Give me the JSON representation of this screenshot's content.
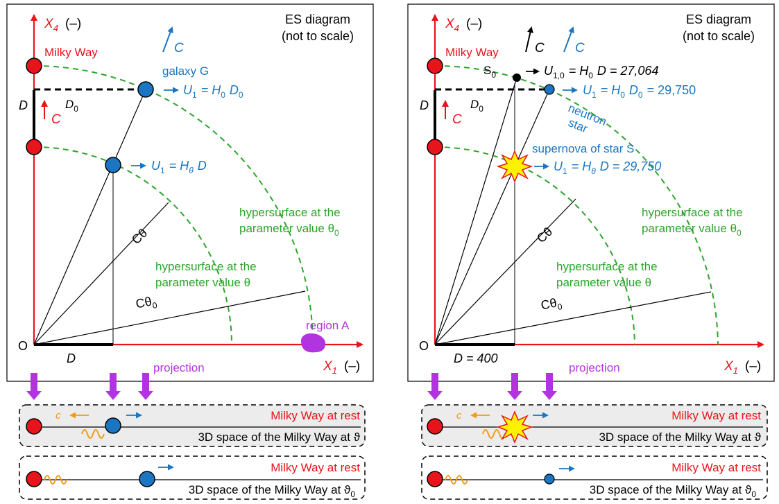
{
  "colors": {
    "red": "#e8141c",
    "blue": "#1a76c2",
    "green": "#2aa52a",
    "magenta": "#b233e0",
    "orange": "#f29a1a",
    "panel_gray": "#ececec"
  },
  "left": {
    "title_line1": "ES diagram",
    "title_line2": "(not to scale)",
    "axis_x4": "X",
    "axis_x4_sub": "4",
    "axis_unit": "(–)",
    "axis_x1": "X",
    "axis_x1_sub": "1",
    "milky_way": "Milky Way",
    "c_label": "C",
    "galaxy": "galaxy G",
    "d_label": "D",
    "d0_label": "D",
    "d0_sub": "0",
    "u1_top_main": "U",
    "u1_top_sub": "1",
    "u1_top_eq": "= H",
    "u1_top_h_sub": "0",
    "u1_top_d": "D",
    "u1_top_d_sub": "0",
    "u1_mid_main": "U",
    "u1_mid_sub": "1",
    "u1_mid_eq": "= H",
    "u1_mid_h_sub": "θ",
    "u1_mid_d": "D",
    "c_theta": "Cθ",
    "c_theta0": "Cθ",
    "c_theta0_sub": "0",
    "hyper_outer_1": "hypersurface at the",
    "hyper_outer_2": "parameter value θ",
    "hyper_outer_2_sub": "0",
    "hyper_inner_1": "hypersurface at the",
    "hyper_inner_2": "parameter value θ",
    "origin": "O",
    "region": "region A",
    "projection": "projection"
  },
  "right": {
    "title_line1": "ES diagram",
    "title_line2": "(not to scale)",
    "axis_x4": "X",
    "axis_x4_sub": "4",
    "axis_unit": "(–)",
    "axis_x1": "X",
    "axis_x1_sub": "1",
    "milky_way": "Milky Way",
    "c_label": "C",
    "s0": "S",
    "s0_sub": "0",
    "u10_main": "U",
    "u10_sub": "1,0",
    "u10_eq": "= H",
    "u10_h_sub": "0",
    "u10_rest": "D = 27,064",
    "u1_top_main": "U",
    "u1_top_sub": "1",
    "u1_top_eq": "= H",
    "u1_top_h_sub": "0",
    "u1_top_d": "D",
    "u1_top_d_sub": "0",
    "u1_top_val": "= 29,750",
    "neutron_1": "neutron",
    "neutron_2": "star",
    "d_label": "D",
    "d0_label": "D",
    "d0_sub": "0",
    "supernova": "supernova of star S",
    "u1_mid_main": "U",
    "u1_mid_sub": "1",
    "u1_mid_eq": "= H",
    "u1_mid_h_sub": "θ",
    "u1_mid_rest": "D = 29,750",
    "c_theta": "Cθ",
    "c_theta0": "Cθ",
    "c_theta0_sub": "0",
    "hyper_outer_1": "hypersurface at the",
    "hyper_outer_2": "parameter value θ",
    "hyper_outer_2_sub": "0",
    "hyper_inner_1": "hypersurface at the",
    "hyper_inner_2": "parameter value θ",
    "origin": "O",
    "d400": "D = 400",
    "projection": "projection"
  },
  "bottom_left": {
    "c_label": "c",
    "rest_1": "Milky Way at rest",
    "space_1": "3D space of the Milky Way at ϑ",
    "rest_2": "Milky Way at rest",
    "space_2": "3D space of the Milky Way at ϑ",
    "space_2_sub": "0"
  },
  "bottom_right": {
    "c_label": "c",
    "rest_1": "Milky Way at rest",
    "space_1": "3D space of the Milky Way at ϑ",
    "rest_2": "Milky Way at rest",
    "space_2": "3D space of the Milky Way at ϑ",
    "space_2_sub": "0"
  }
}
